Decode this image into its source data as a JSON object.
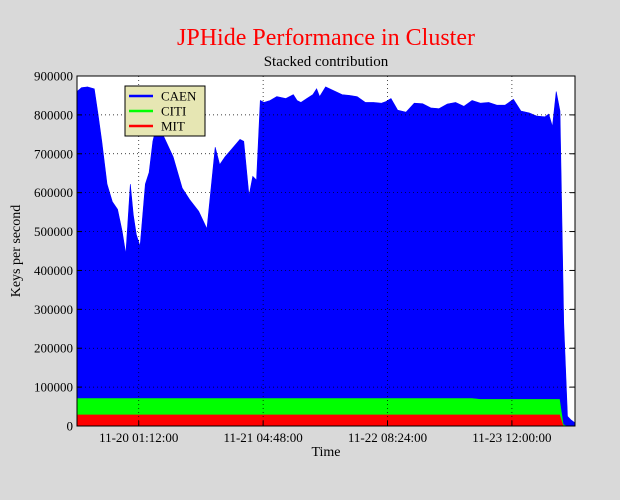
{
  "chart_data": {
    "type": "area",
    "title": "JPHide Performance in Cluster",
    "subtitle": "Stacked contribution",
    "xlabel": "Time",
    "ylabel": "Keys per second",
    "stacked": true,
    "ylim": [
      0,
      900000
    ],
    "y_ticks": [
      "0",
      "100000",
      "200000",
      "300000",
      "400000",
      "500000",
      "600000",
      "700000",
      "800000",
      "900000"
    ],
    "x_range": [
      "2003-11-19 11:30:00",
      "2003-11-24 02:00:00"
    ],
    "x_ticks": [
      "11-20 01:12:00",
      "11-21 04:48:00",
      "11-22 08:24:00",
      "11-23 12:00:00"
    ],
    "x_tick_times": [
      "2003-11-20 01:12:00",
      "2003-11-21 04:48:00",
      "2003-11-22 08:24:00",
      "2003-11-23 12:00:00"
    ],
    "grid": true,
    "legend_position": "top-left",
    "colors": {
      "CAEN": "#0000ff",
      "CITI": "#00ff00",
      "MIT": "#ff0000",
      "title": "#ff0000",
      "background": "#d9d9d9",
      "plot_bg": "#ffffff",
      "legend_bg": "#e6e6b3"
    },
    "x": [
      "2003-11-19 11:30:00",
      "2003-11-19 12:30:00",
      "2003-11-19 13:50:00",
      "2003-11-19 15:20:00",
      "2003-11-19 16:10:00",
      "2003-11-19 17:00:00",
      "2003-11-19 18:10:00",
      "2003-11-19 19:20:00",
      "2003-11-19 20:30:00",
      "2003-11-19 21:30:00",
      "2003-11-19 22:20:00",
      "2003-11-19 23:20:00",
      "2003-11-20 00:00:00",
      "2003-11-20 00:40:00",
      "2003-11-20 01:30:00",
      "2003-11-20 02:40:00",
      "2003-11-20 03:30:00",
      "2003-11-20 04:20:00",
      "2003-11-20 05:10:00",
      "2003-11-20 06:50:00",
      "2003-11-20 08:50:00",
      "2003-11-20 10:50:00",
      "2003-11-20 12:30:00",
      "2003-11-20 14:30:00",
      "2003-11-20 16:20:00",
      "2003-11-20 18:10:00",
      "2003-11-20 19:10:00",
      "2003-11-20 20:20:00",
      "2003-11-20 21:50:00",
      "2003-11-20 23:40:00",
      "2003-11-21 00:30:00",
      "2003-11-21 01:40:00",
      "2003-11-21 02:30:00",
      "2003-11-21 03:20:00",
      "2003-11-21 04:10:00",
      "2003-11-21 05:00:00",
      "2003-11-21 06:20:00",
      "2003-11-21 07:50:00",
      "2003-11-21 09:50:00",
      "2003-11-21 11:30:00",
      "2003-11-21 12:20:00",
      "2003-11-21 13:10:00",
      "2003-11-21 14:30:00",
      "2003-11-21 15:50:00",
      "2003-11-21 16:40:00",
      "2003-11-21 17:20:00",
      "2003-11-21 18:40:00",
      "2003-11-21 20:30:00",
      "2003-11-21 22:20:00",
      "2003-11-22 00:00:00",
      "2003-11-22 01:40:00",
      "2003-11-22 03:30:00",
      "2003-11-22 05:20:00",
      "2003-11-22 07:00:00",
      "2003-11-22 08:00:00",
      "2003-11-22 09:10:00",
      "2003-11-22 10:40:00",
      "2003-11-22 12:30:00",
      "2003-11-22 14:20:00",
      "2003-11-22 16:10:00",
      "2003-11-22 18:00:00",
      "2003-11-22 19:50:00",
      "2003-11-22 21:40:00",
      "2003-11-22 23:30:00",
      "2003-11-23 01:20:00",
      "2003-11-23 03:10:00",
      "2003-11-23 05:00:00",
      "2003-11-23 06:50:00",
      "2003-11-23 08:40:00",
      "2003-11-23 10:30:00",
      "2003-11-23 12:20:00",
      "2003-11-23 14:00:00",
      "2003-11-23 15:50:00",
      "2003-11-23 17:30:00",
      "2003-11-23 19:20:00",
      "2003-11-23 20:10:00",
      "2003-11-23 21:00:00",
      "2003-11-23 21:50:00",
      "2003-11-23 22:40:00",
      "2003-11-23 23:30:00",
      "2003-11-24 00:20:00",
      "2003-11-24 01:10:00",
      "2003-11-24 02:00:00"
    ],
    "series": [
      {
        "name": "MIT",
        "values": [
          30000,
          30000,
          30000,
          30000,
          30000,
          30000,
          30000,
          30000,
          30000,
          30000,
          30000,
          30000,
          30000,
          30000,
          30000,
          30000,
          30000,
          30000,
          30000,
          30000,
          30000,
          30000,
          30000,
          30000,
          30000,
          30000,
          30000,
          30000,
          30000,
          30000,
          30000,
          30000,
          30000,
          30000,
          30000,
          30000,
          30000,
          30000,
          30000,
          30000,
          30000,
          30000,
          30000,
          30000,
          30000,
          30000,
          30000,
          30000,
          30000,
          30000,
          30000,
          30000,
          30000,
          30000,
          30000,
          30000,
          30000,
          30000,
          30000,
          30000,
          30000,
          30000,
          30000,
          30000,
          30000,
          30000,
          30000,
          30000,
          30000,
          30000,
          30000,
          30000,
          30000,
          30000,
          30000,
          30000,
          30000,
          30000,
          30000,
          0,
          0,
          0,
          0
        ]
      },
      {
        "name": "CITI",
        "values": [
          42000,
          42000,
          42000,
          42000,
          42000,
          42000,
          42000,
          42000,
          42000,
          42000,
          42000,
          42000,
          42000,
          42000,
          42000,
          42000,
          42000,
          42000,
          42000,
          42000,
          42000,
          42000,
          42000,
          42000,
          42000,
          42000,
          42000,
          42000,
          42000,
          42000,
          42000,
          42000,
          42000,
          42000,
          42000,
          42000,
          42000,
          42000,
          42000,
          42000,
          42000,
          42000,
          42000,
          42000,
          42000,
          42000,
          42000,
          42000,
          42000,
          42000,
          42000,
          42000,
          42000,
          42000,
          42000,
          42000,
          42000,
          42000,
          42000,
          42000,
          42000,
          42000,
          42000,
          42000,
          42000,
          42000,
          40000,
          40000,
          40000,
          40000,
          40000,
          40000,
          40000,
          40000,
          40000,
          40000,
          40000,
          40000,
          40000,
          5000,
          0,
          0,
          0
        ]
      },
      {
        "name": "CAEN",
        "values": [
          788000,
          798000,
          800000,
          795000,
          730000,
          660000,
          550000,
          505000,
          485000,
          430000,
          370000,
          550000,
          470000,
          420000,
          390000,
          550000,
          580000,
          660000,
          700000,
          670000,
          620000,
          540000,
          510000,
          480000,
          435000,
          645000,
          600000,
          620000,
          640000,
          665000,
          660000,
          520000,
          570000,
          560000,
          765000,
          760000,
          765000,
          775000,
          770000,
          780000,
          765000,
          760000,
          770000,
          780000,
          795000,
          775000,
          800000,
          790000,
          780000,
          778000,
          775000,
          760000,
          760000,
          758000,
          762000,
          770000,
          740000,
          735000,
          758000,
          757000,
          746000,
          744000,
          756000,
          760000,
          750000,
          765000,
          760000,
          762000,
          755000,
          755000,
          770000,
          740000,
          735000,
          727000,
          725000,
          732000,
          700000,
          790000,
          740000,
          260000,
          25000,
          15000,
          8000
        ]
      }
    ]
  }
}
